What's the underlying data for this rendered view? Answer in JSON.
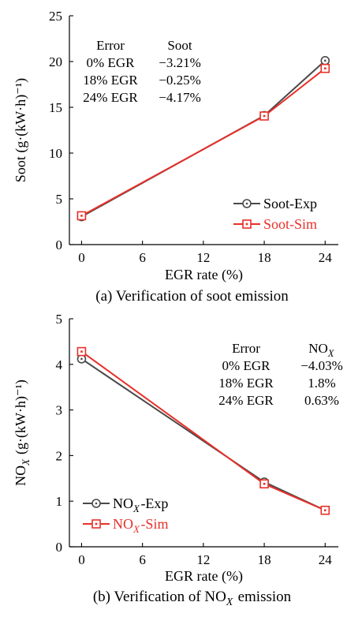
{
  "chart_data": [
    {
      "type": "line",
      "caption": "(a) Verification of soot emission",
      "xlabel": "EGR rate (%)",
      "ylabel": "Soot (g·(kW·h)⁻¹)",
      "xlim": [
        -1.2,
        25.3
      ],
      "ylim": [
        0,
        25
      ],
      "xticks": [
        0,
        6,
        12,
        18,
        24
      ],
      "yticks": [
        0,
        5,
        10,
        15,
        20,
        25
      ],
      "grid": false,
      "legend_position": "bottom-right",
      "x": [
        0,
        18,
        24
      ],
      "series": [
        {
          "name": "Soot-Exp",
          "values": [
            3.05,
            14.1,
            20.1
          ],
          "color": "#4a4a4a",
          "marker": "circle"
        },
        {
          "name": "Soot-Sim",
          "values": [
            3.15,
            14.05,
            19.25
          ],
          "color": "#e8302a",
          "marker": "square"
        }
      ],
      "error_table": {
        "headers": [
          "Error",
          "Soot"
        ],
        "rows": [
          [
            "0% EGR",
            "−3.21%"
          ],
          [
            "18% EGR",
            "−0.25%"
          ],
          [
            "24% EGR",
            "−4.17%"
          ]
        ]
      }
    },
    {
      "type": "line",
      "caption": "(b) Verification of NOX emission",
      "xlabel": "EGR rate (%)",
      "ylabel": "NOX (g·(kW·h)⁻¹)",
      "xlim": [
        -1.2,
        25.3
      ],
      "ylim": [
        0,
        5
      ],
      "xticks": [
        0,
        6,
        12,
        18,
        24
      ],
      "yticks": [
        0,
        1,
        2,
        3,
        4,
        5
      ],
      "grid": false,
      "legend_position": "bottom-left",
      "x": [
        0,
        18,
        24
      ],
      "series": [
        {
          "name": "NOX-Exp",
          "values": [
            4.12,
            1.42,
            0.8
          ],
          "color": "#4a4a4a",
          "marker": "circle"
        },
        {
          "name": "NOX-Sim",
          "values": [
            4.28,
            1.38,
            0.8
          ],
          "color": "#e8302a",
          "marker": "square"
        }
      ],
      "error_table": {
        "headers": [
          "Error",
          "NOX"
        ],
        "rows": [
          [
            "0% EGR",
            "−4.03%"
          ],
          [
            "18% EGR",
            "1.8%"
          ],
          [
            "24% EGR",
            "0.63%"
          ]
        ]
      }
    }
  ]
}
